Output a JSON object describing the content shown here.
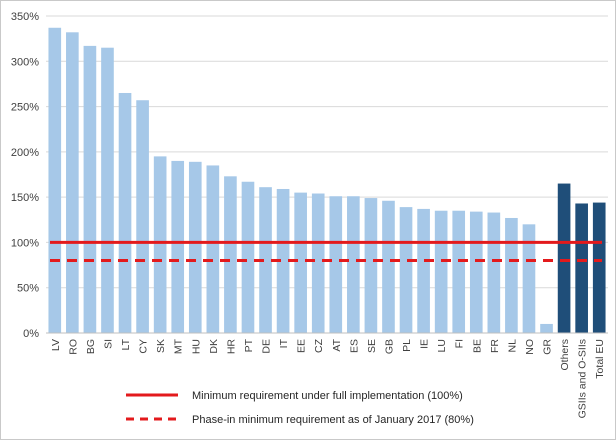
{
  "chart_data": {
    "type": "bar",
    "title": "",
    "xlabel": "",
    "ylabel": "",
    "ylim": [
      0,
      350
    ],
    "y_ticks": [
      0,
      50,
      100,
      150,
      200,
      250,
      300,
      350
    ],
    "y_tick_labels": [
      "0%",
      "50%",
      "100%",
      "150%",
      "200%",
      "250%",
      "300%",
      "350%"
    ],
    "categories": [
      "LV",
      "RO",
      "BG",
      "SI",
      "LT",
      "CY",
      "SK",
      "MT",
      "HU",
      "DK",
      "HR",
      "PT",
      "DE",
      "IT",
      "EE",
      "CZ",
      "AT",
      "ES",
      "SE",
      "GB",
      "PL",
      "IE",
      "LU",
      "FI",
      "BE",
      "FR",
      "NL",
      "NO",
      "GR",
      "Others",
      "GSIIs and O-SIIs",
      "Total EU"
    ],
    "values": [
      337,
      332,
      317,
      315,
      265,
      257,
      195,
      190,
      189,
      185,
      173,
      167,
      161,
      159,
      155,
      154,
      151,
      151,
      149,
      146,
      139,
      137,
      135,
      135,
      134,
      133,
      127,
      120,
      10,
      165,
      143,
      144
    ],
    "colors": {
      "country": "#a6c8e8",
      "aggregate": "#1f4e79",
      "full_line": "#e31a1c",
      "phase_line": "#e31a1c"
    },
    "aggregate_categories": [
      "Others",
      "GSIIs and O-SIIs",
      "Total EU"
    ],
    "reference_lines": [
      {
        "value": 100,
        "style": "solid",
        "label": "Minimum requirement under full implementation (100%)"
      },
      {
        "value": 80,
        "style": "dashed",
        "label": "Phase-in minimum requirement as of January 2017 (80%)"
      }
    ],
    "grid": true,
    "legend_placement": "bottom"
  }
}
